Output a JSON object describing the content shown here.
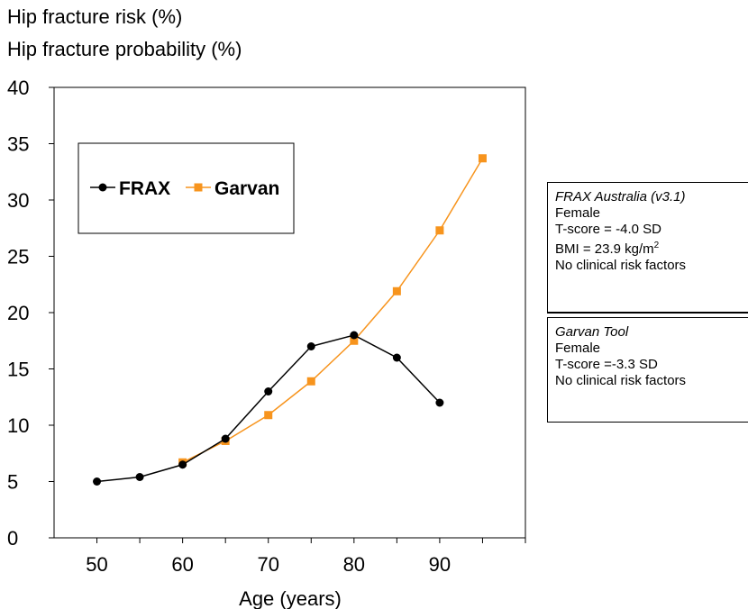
{
  "chart_data": {
    "type": "line",
    "ylabel_lines": [
      "Hip fracture risk (%)",
      "Hip fracture probability (%)"
    ],
    "xlabel": "Age (years)",
    "xlim": [
      45,
      100
    ],
    "ylim": [
      0,
      40
    ],
    "x_ticks": [
      50,
      60,
      70,
      80,
      90
    ],
    "x_minor_ticks": [
      55,
      65,
      75,
      85,
      95,
      100
    ],
    "y_ticks": [
      0,
      5,
      10,
      15,
      20,
      25,
      30,
      35,
      40
    ],
    "grid": false,
    "legend_position": "top-left",
    "series": [
      {
        "name": "FRAX",
        "color": "#000000",
        "marker": "circle",
        "x": [
          50,
          55,
          60,
          65,
          70,
          75,
          80,
          85,
          90
        ],
        "y": [
          5.0,
          5.4,
          6.5,
          8.8,
          13.0,
          17.0,
          18.0,
          16.0,
          12.0
        ]
      },
      {
        "name": "Garvan",
        "color": "#f7941d",
        "marker": "square",
        "x": [
          60,
          65,
          70,
          75,
          80,
          85,
          90,
          95
        ],
        "y": [
          6.7,
          8.6,
          10.9,
          13.9,
          17.5,
          21.9,
          27.3,
          33.7
        ]
      }
    ]
  },
  "info_boxes": {
    "frax": {
      "title": "FRAX Australia (v3.1)",
      "line1": "Female",
      "line2": "T-score = -4.0 SD",
      "bmi_prefix": "BMI = 23.9 kg/m",
      "bmi_sup": "2",
      "line4": "No clinical risk factors"
    },
    "garvan": {
      "title": "Garvan Tool",
      "line1": "Female",
      "line2": "T-score =-3.3 SD",
      "line3": "No clinical risk factors"
    }
  }
}
